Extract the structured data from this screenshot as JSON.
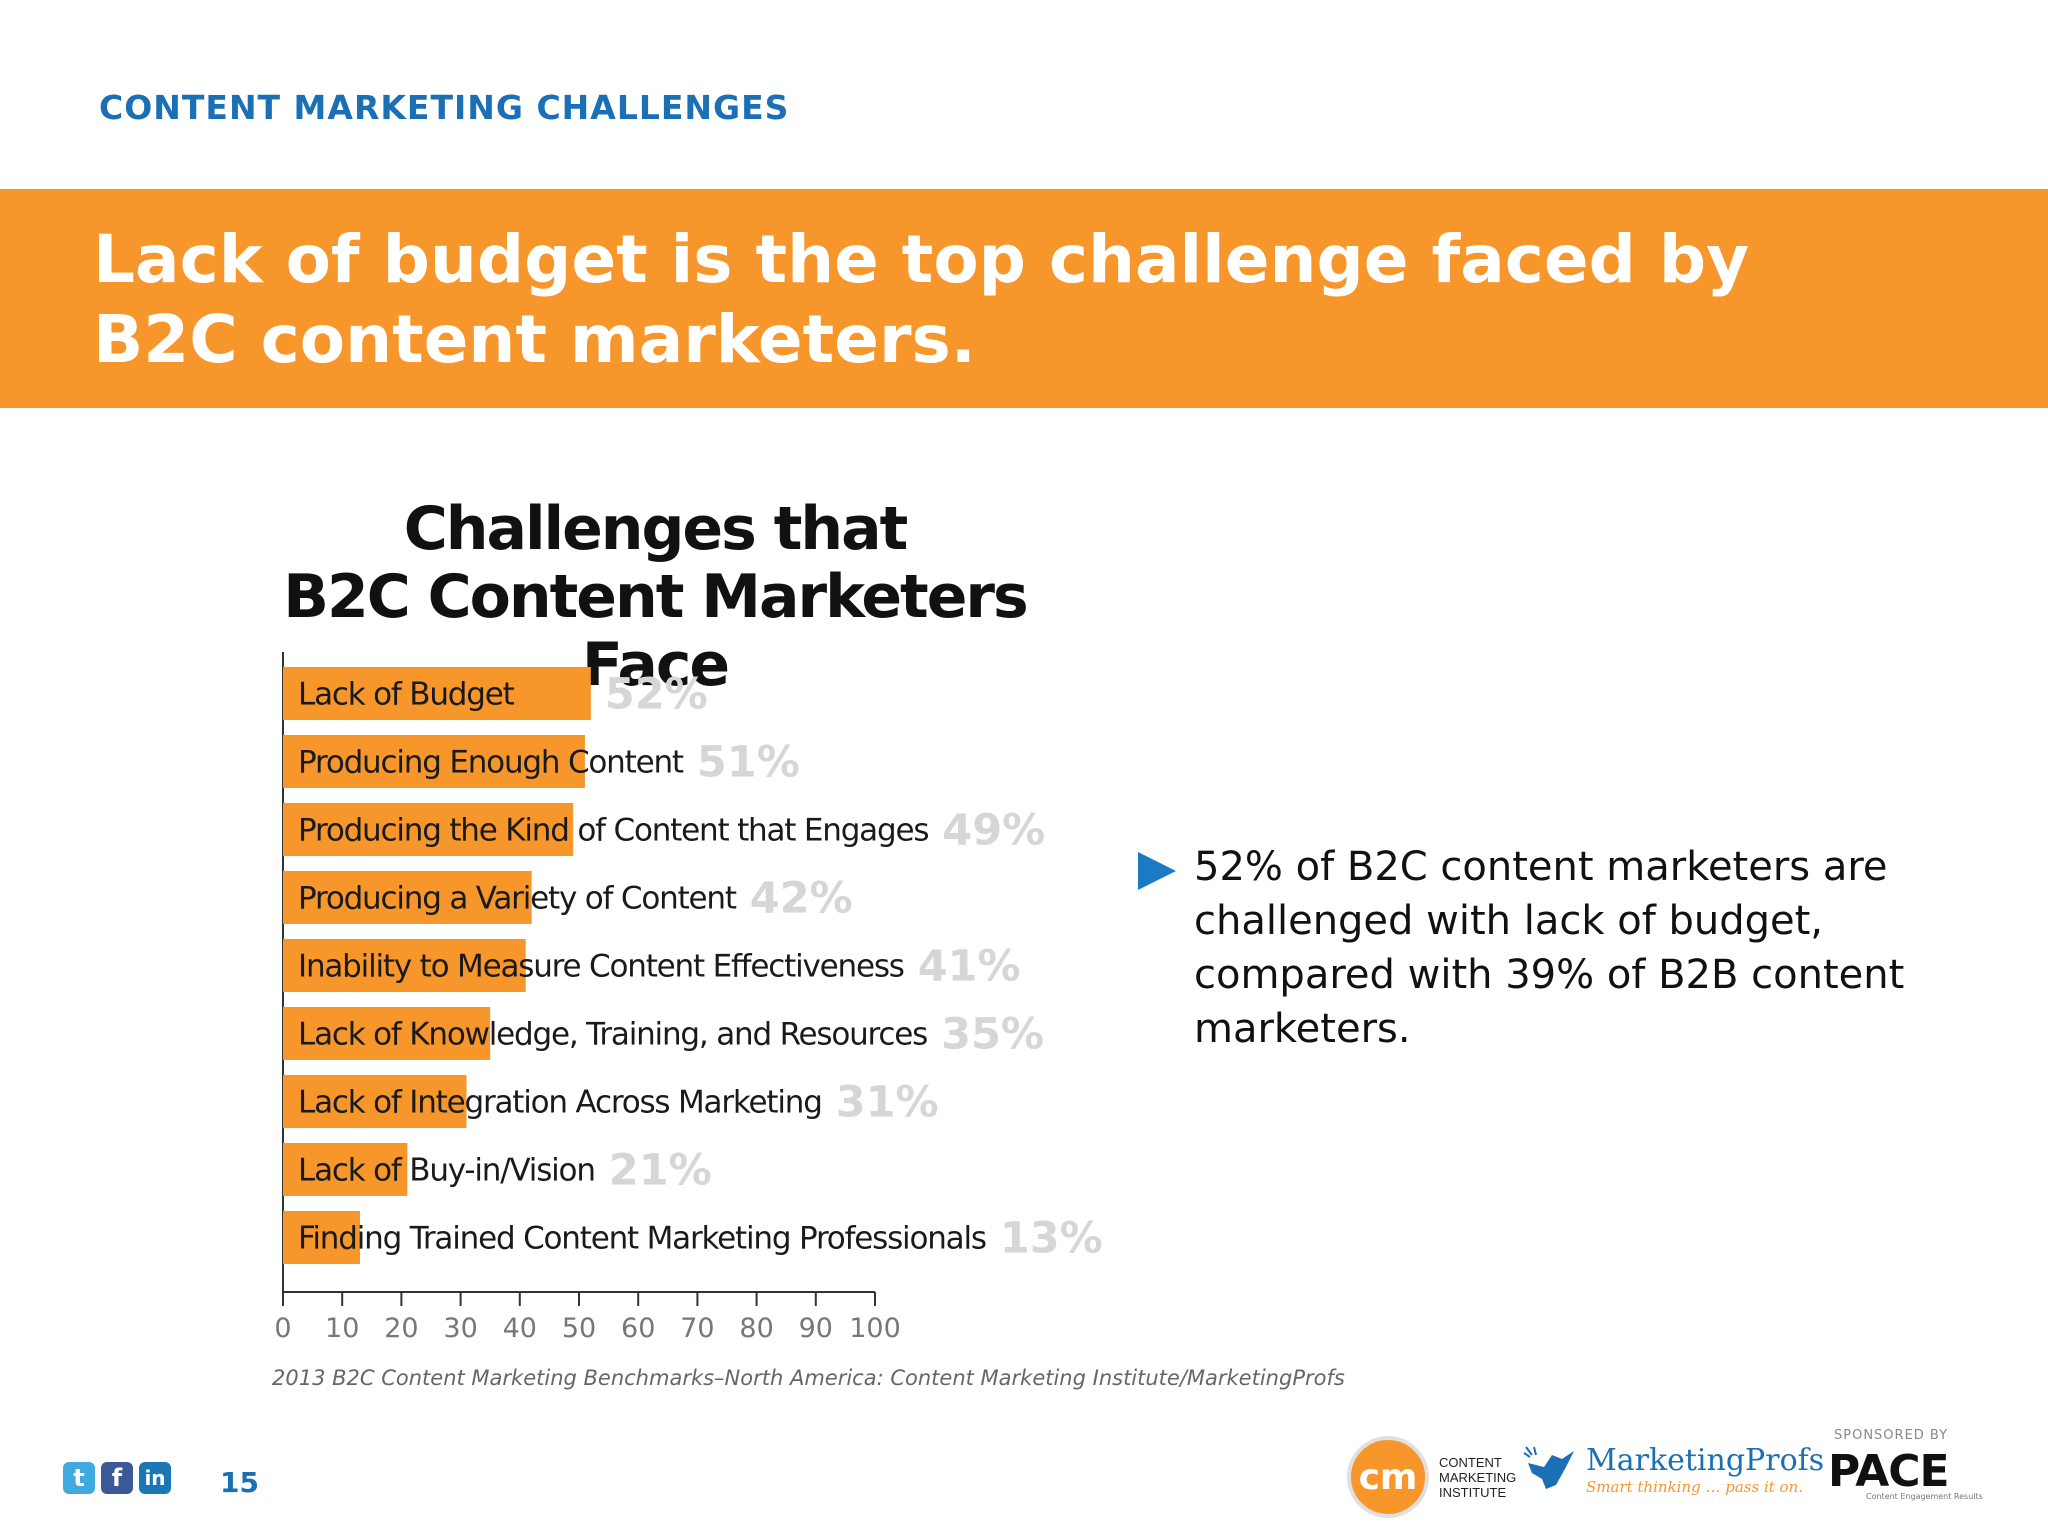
{
  "header": {
    "section_label": "CONTENT MARKETING CHALLENGES",
    "headline_line1": "Lack of budget is the top challenge faced by",
    "headline_line2": "B2C content marketers."
  },
  "chart_data": {
    "type": "bar",
    "orientation": "horizontal",
    "title_line1": "Challenges that",
    "title_line2": "B2C Content Marketers Face",
    "categories": [
      "Lack of Budget",
      "Producing Enough Content",
      "Producing the Kind of Content that Engages",
      "Producing a Variety of Content",
      "Inability to Measure Content Effectiveness",
      "Lack of Knowledge, Training, and Resources",
      "Lack of Integration Across Marketing",
      "Lack of Buy-in/Vision",
      "Finding Trained Content Marketing Professionals"
    ],
    "values": [
      52,
      51,
      49,
      42,
      41,
      35,
      31,
      21,
      13
    ],
    "value_labels": [
      "52%",
      "51%",
      "49%",
      "42%",
      "41%",
      "35%",
      "31%",
      "21%",
      "13%"
    ],
    "xlim": [
      0,
      100
    ],
    "x_ticks": [
      0,
      10,
      20,
      30,
      40,
      50,
      60,
      70,
      80,
      90,
      100
    ],
    "grid": false,
    "bar_color": "#f7962b",
    "value_label_color": "#d6d6d6",
    "source": "2013 B2C Content Marketing Benchmarks–North America: Content Marketing Institute/MarketingProfs"
  },
  "callout": {
    "text": "52% of B2C content marketers are challenged with lack of budget, compared with 39% of B2B content marketers.",
    "arrow_color": "#1a7bc4"
  },
  "footer": {
    "social_icons": [
      "twitter-icon",
      "facebook-icon",
      "linkedin-icon"
    ],
    "page_number": "15",
    "cmi_logo_mark": "cm",
    "cmi_line1": "CONTENT",
    "cmi_line2": "MARKETING",
    "cmi_line3": "INSTITUTE",
    "marketingprofs_name": "MarketingProfs",
    "marketingprofs_tagline": "Smart thinking … pass it on.",
    "sponsored_by": "SPONSORED BY",
    "pace_logo": "PACE",
    "pace_tagline": "Content Engagement Results"
  },
  "colors": {
    "accent_blue": "#1a6fb5",
    "banner_orange": "#f7962b"
  }
}
